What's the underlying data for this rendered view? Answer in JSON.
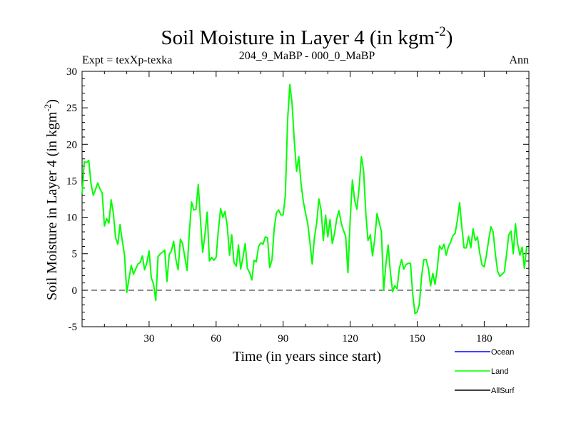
{
  "chart_data": {
    "type": "line",
    "title_main": "Soil Moisture in Layer 4 (in kgm",
    "title_sup": "-2",
    "title_close": ")",
    "subtitle_left": "Expt = texXp-texka",
    "subtitle_center": "204_9_MaBP - 000_0_MaBP",
    "subtitle_right": "Ann",
    "xlabel": "Time (in years since start)",
    "ylabel_main": "Soil Moisture in Layer 4 (in kgm",
    "ylabel_sup": "-2",
    "ylabel_close": ")",
    "xlim": [
      0,
      200
    ],
    "ylim": [
      -5,
      30
    ],
    "xticks": [
      30,
      60,
      90,
      120,
      150,
      180
    ],
    "yticks": [
      -5,
      0,
      5,
      10,
      15,
      20,
      25,
      30
    ],
    "zero_line": true,
    "legend": [
      {
        "name": "Ocean",
        "color": "#0000ff"
      },
      {
        "name": "Land",
        "color": "#00ff00"
      },
      {
        "name": "AllSurf",
        "color": "#000000"
      }
    ],
    "series": [
      {
        "name": "Land",
        "color": "#00ff00",
        "x": [
          0,
          1,
          2,
          3,
          4,
          5,
          6,
          7,
          8,
          9,
          10,
          11,
          12,
          13,
          14,
          15,
          16,
          17,
          18,
          19,
          20,
          21,
          22,
          23,
          24,
          25,
          26,
          27,
          28,
          29,
          30,
          31,
          32,
          33,
          34,
          35,
          36,
          37,
          38,
          39,
          40,
          41,
          42,
          43,
          44,
          45,
          46,
          47,
          48,
          49,
          50,
          51,
          52,
          53,
          54,
          55,
          56,
          57,
          58,
          59,
          60,
          61,
          62,
          63,
          64,
          65,
          66,
          67,
          68,
          69,
          70,
          71,
          72,
          73,
          74,
          75,
          76,
          77,
          78,
          79,
          80,
          81,
          82,
          83,
          84,
          85,
          86,
          87,
          88,
          89,
          90,
          91,
          92,
          93,
          94,
          95,
          96,
          97,
          98,
          99,
          100,
          101,
          102,
          103,
          104,
          105,
          106,
          107,
          108,
          109,
          110,
          111,
          112,
          113,
          114,
          115,
          116,
          117,
          118,
          119,
          120,
          121,
          122,
          123,
          124,
          125,
          126,
          127,
          128,
          129,
          130,
          131,
          132,
          133,
          134,
          135,
          136,
          137,
          138,
          139,
          140,
          141,
          142,
          143,
          144,
          145,
          146,
          147,
          148,
          149,
          150,
          151,
          152,
          153,
          154,
          155,
          156,
          157,
          158,
          159,
          160,
          161,
          162,
          163,
          164,
          165,
          166,
          167,
          168,
          169,
          170,
          171,
          172,
          173,
          174,
          175,
          176,
          177,
          178,
          179,
          180,
          181,
          182,
          183,
          184,
          185,
          186,
          187,
          188,
          189,
          190,
          191,
          192,
          193,
          194,
          195,
          196,
          197,
          198,
          199
        ],
        "values": [
          13.2,
          17.6,
          17.5,
          17.8,
          14.6,
          13.0,
          13.8,
          14.7,
          13.9,
          13.3,
          8.8,
          9.8,
          9.2,
          12.4,
          10.6,
          7.2,
          6.3,
          9.0,
          6.8,
          4.8,
          -0.3,
          1.6,
          3.4,
          2.2,
          2.9,
          3.6,
          3.8,
          4.7,
          2.8,
          3.8,
          5.4,
          1.7,
          0.8,
          -1.4,
          4.6,
          5.0,
          5.2,
          5.5,
          1.2,
          4.9,
          5.4,
          6.7,
          4.2,
          2.8,
          7.0,
          6.4,
          4.5,
          2.7,
          7.8,
          12.1,
          11.0,
          11.1,
          14.5,
          9.6,
          5.2,
          7.6,
          10.7,
          4.0,
          4.5,
          4.1,
          4.5,
          8.2,
          11.2,
          10.0,
          10.8,
          8.7,
          4.8,
          7.6,
          3.8,
          3.3,
          6.2,
          2.9,
          4.5,
          6.4,
          3.0,
          2.4,
          1.4,
          4.1,
          3.9,
          6.0,
          6.5,
          6.3,
          7.3,
          7.2,
          3.1,
          4.2,
          8.5,
          10.6,
          11.0,
          10.3,
          10.3,
          13.0,
          23.4,
          28.2,
          25.6,
          20.5,
          16.3,
          18.3,
          14.7,
          12.2,
          10.6,
          9.2,
          6.5,
          3.6,
          7.2,
          9.2,
          12.5,
          11.0,
          6.8,
          10.3,
          7.3,
          9.7,
          6.4,
          7.8,
          9.8,
          10.9,
          9.2,
          8.2,
          7.4,
          2.4,
          9.6,
          15.1,
          12.3,
          11.1,
          14.0,
          18.3,
          16.4,
          10.6,
          6.8,
          7.6,
          4.7,
          7.0,
          10.5,
          9.3,
          8.0,
          0.0,
          3.6,
          6.2,
          2.5,
          -0.2,
          0.6,
          0.2,
          3.0,
          4.2,
          2.9,
          3.5,
          3.7,
          3.7,
          -0.5,
          -3.2,
          -3.0,
          -1.9,
          2.0,
          4.2,
          4.2,
          3.0,
          0.6,
          2.3,
          0.8,
          3.0,
          6.1,
          5.6,
          6.3,
          4.8,
          6.0,
          6.6,
          7.5,
          7.8,
          9.6,
          12.0,
          8.6,
          5.8,
          5.8,
          7.4,
          5.8,
          8.4,
          6.8,
          7.3,
          5.1,
          3.5,
          3.2,
          4.8,
          6.9,
          8.7,
          8.0,
          4.9,
          2.6,
          1.9,
          2.2,
          2.5,
          4.9,
          7.6,
          8.1,
          5.0,
          9.1,
          6.3,
          4.8,
          5.9,
          3.0,
          6.0
        ]
      }
    ]
  }
}
